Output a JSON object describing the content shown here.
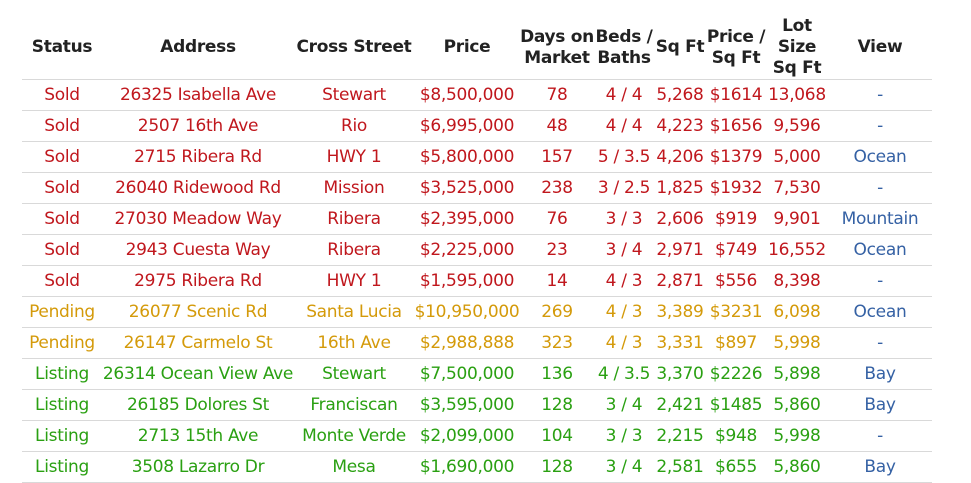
{
  "headers": {
    "status": "Status",
    "address": "Address",
    "cross": "Cross Street",
    "price": "Price",
    "days_1": "Days on",
    "days_2": "Market",
    "beds_1": "Beds /",
    "beds_2": "Baths",
    "sqft": "Sq Ft",
    "ppsf_1": "Price /",
    "ppsf_2": "Sq Ft",
    "lot_1": "Lot Size",
    "lot_2": "Sq Ft",
    "view": "View"
  },
  "colors": {
    "sold": "#c0171d",
    "pending": "#d49a0a",
    "listing": "#2aa012",
    "view": "#3561a4"
  },
  "rows": [
    {
      "status": "Sold",
      "address": "26325 Isabella Ave",
      "cross": "Stewart",
      "price": "$8,500,000",
      "days": "78",
      "beds": "4 / 4",
      "sqft": "5,268",
      "ppsf": "$1614",
      "lot": "13,068",
      "view": "-"
    },
    {
      "status": "Sold",
      "address": "2507 16th Ave",
      "cross": "Rio",
      "price": "$6,995,000",
      "days": "48",
      "beds": "4 / 4",
      "sqft": "4,223",
      "ppsf": "$1656",
      "lot": "9,596",
      "view": "-"
    },
    {
      "status": "Sold",
      "address": "2715 Ribera Rd",
      "cross": "HWY 1",
      "price": "$5,800,000",
      "days": "157",
      "beds": "5 / 3.5",
      "sqft": "4,206",
      "ppsf": "$1379",
      "lot": "5,000",
      "view": "Ocean"
    },
    {
      "status": "Sold",
      "address": "26040 Ridewood Rd",
      "cross": "Mission",
      "price": "$3,525,000",
      "days": "238",
      "beds": "3 / 2.5",
      "sqft": "1,825",
      "ppsf": "$1932",
      "lot": "7,530",
      "view": "-"
    },
    {
      "status": "Sold",
      "address": "27030 Meadow Way",
      "cross": "Ribera",
      "price": "$2,395,000",
      "days": "76",
      "beds": "3 / 3",
      "sqft": "2,606",
      "ppsf": "$919",
      "lot": "9,901",
      "view": "Mountain"
    },
    {
      "status": "Sold",
      "address": "2943 Cuesta Way",
      "cross": "Ribera",
      "price": "$2,225,000",
      "days": "23",
      "beds": "3 / 4",
      "sqft": "2,971",
      "ppsf": "$749",
      "lot": "16,552",
      "view": "Ocean"
    },
    {
      "status": "Sold",
      "address": "2975 Ribera Rd",
      "cross": "HWY 1",
      "price": "$1,595,000",
      "days": "14",
      "beds": "4 / 3",
      "sqft": "2,871",
      "ppsf": "$556",
      "lot": "8,398",
      "view": "-"
    },
    {
      "status": "Pending",
      "address": "26077 Scenic Rd",
      "cross": "Santa Lucia",
      "price": "$10,950,000",
      "days": "269",
      "beds": "4 / 3",
      "sqft": "3,389",
      "ppsf": "$3231",
      "lot": "6,098",
      "view": "Ocean"
    },
    {
      "status": "Pending",
      "address": "26147 Carmelo St",
      "cross": "16th Ave",
      "price": "$2,988,888",
      "days": "323",
      "beds": "4 / 3",
      "sqft": "3,331",
      "ppsf": "$897",
      "lot": "5,998",
      "view": "-"
    },
    {
      "status": "Listing",
      "address": "26314 Ocean View Ave",
      "cross": "Stewart",
      "price": "$7,500,000",
      "days": "136",
      "beds": "4 / 3.5",
      "sqft": "3,370",
      "ppsf": "$2226",
      "lot": "5,898",
      "view": "Bay"
    },
    {
      "status": "Listing",
      "address": "26185 Dolores St",
      "cross": "Franciscan",
      "price": "$3,595,000",
      "days": "128",
      "beds": "3 / 4",
      "sqft": "2,421",
      "ppsf": "$1485",
      "lot": "5,860",
      "view": "Bay"
    },
    {
      "status": "Listing",
      "address": "2713 15th Ave",
      "cross": "Monte Verde",
      "price": "$2,099,000",
      "days": "104",
      "beds": "3 / 3",
      "sqft": "2,215",
      "ppsf": "$948",
      "lot": "5,998",
      "view": "-"
    },
    {
      "status": "Listing",
      "address": "3508 Lazarro Dr",
      "cross": "Mesa",
      "price": "$1,690,000",
      "days": "128",
      "beds": "3 / 4",
      "sqft": "2,581",
      "ppsf": "$655",
      "lot": "5,860",
      "view": "Bay"
    }
  ]
}
